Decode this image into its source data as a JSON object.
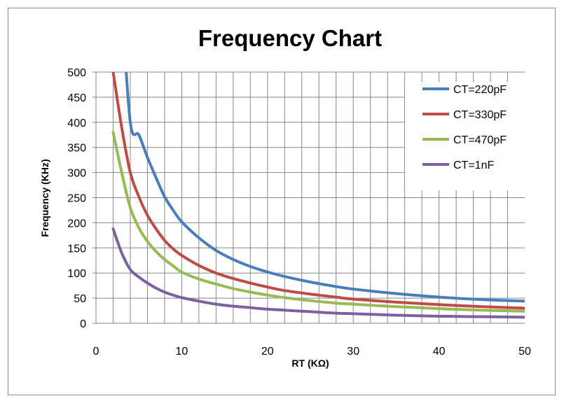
{
  "chart_data": {
    "type": "line",
    "title": "Frequency Chart",
    "xlabel": "RT (KΩ)",
    "ylabel": "Frequency (KHz)",
    "xlim": [
      0,
      50
    ],
    "ylim": [
      0,
      500
    ],
    "x_ticks": [
      0,
      10,
      20,
      30,
      40,
      50
    ],
    "y_ticks": [
      0,
      50,
      100,
      150,
      200,
      250,
      300,
      350,
      400,
      450,
      500
    ],
    "grid": "vertical and horizontal",
    "legend_position": "top-right",
    "series": [
      {
        "name": "CT=220pF",
        "color": "#4a7ebb",
        "x": [
          3,
          4,
          5,
          6,
          7,
          8,
          9,
          10,
          12,
          14,
          16,
          18,
          20,
          22,
          25,
          28,
          30,
          35,
          40,
          45,
          50
        ],
        "y": [
          640,
          400,
          375,
          330,
          290,
          252,
          225,
          202,
          170,
          145,
          127,
          113,
          102,
          93,
          82,
          73,
          68,
          59,
          52,
          47,
          44
        ]
      },
      {
        "name": "CT=330pF",
        "color": "#be4b48",
        "x": [
          2,
          3,
          4,
          5,
          6,
          7,
          8,
          9,
          10,
          12,
          14,
          16,
          18,
          20,
          22,
          25,
          28,
          30,
          35,
          40,
          45,
          50
        ],
        "y": [
          500,
          390,
          300,
          252,
          215,
          188,
          165,
          148,
          135,
          115,
          100,
          89,
          80,
          72,
          65,
          58,
          52,
          48,
          42,
          37,
          33,
          30
        ]
      },
      {
        "name": "CT=470pF",
        "color": "#98b954",
        "x": [
          2,
          3,
          4,
          5,
          6,
          7,
          8,
          9,
          10,
          12,
          14,
          16,
          18,
          20,
          22,
          25,
          28,
          30,
          35,
          40,
          45,
          50
        ],
        "y": [
          380,
          300,
          230,
          190,
          163,
          143,
          127,
          114,
          102,
          88,
          78,
          69,
          62,
          56,
          51,
          45,
          40,
          38,
          33,
          29,
          26,
          24
        ]
      },
      {
        "name": "CT=1nF",
        "color": "#7d60a0",
        "x": [
          2,
          3,
          4,
          5,
          6,
          7,
          8,
          9,
          10,
          12,
          14,
          16,
          18,
          20,
          22,
          25,
          28,
          30,
          35,
          40,
          45,
          50
        ],
        "y": [
          188,
          140,
          107,
          92,
          80,
          70,
          62,
          56,
          51,
          44,
          38,
          34,
          31,
          28,
          26,
          23,
          20,
          19,
          16,
          14,
          13,
          12
        ]
      }
    ]
  }
}
